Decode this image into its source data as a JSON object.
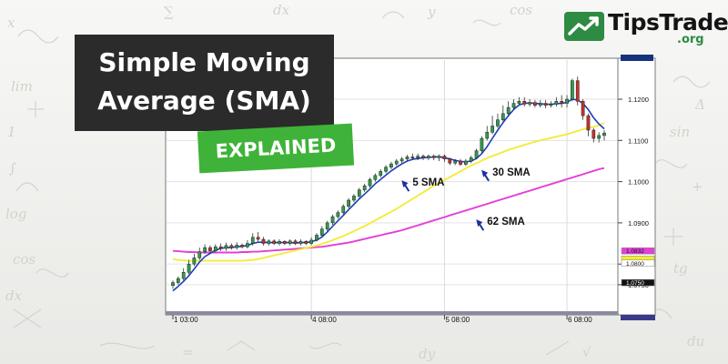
{
  "title": {
    "line1": "Simple Moving",
    "line2": "Average (SMA)",
    "badge": "EXPLAINED"
  },
  "logo": {
    "name": "TipsTrade",
    "suffix": ".org"
  },
  "colors": {
    "sma5": "#1d3fb8",
    "sma30": "#f2ec3a",
    "sma62": "#e23fd8",
    "candle_up": "#2e9e48",
    "candle_down": "#c8302c",
    "title_bg": "#2b2b2b",
    "badge_bg": "#3fb23a"
  },
  "chart_data": {
    "type": "line",
    "title": "",
    "xlabel": "",
    "ylabel": "",
    "x_ticks": [
      "1 03:00",
      "4 08:00",
      "5 08:00",
      "6 08:00"
    ],
    "y_ticks": [
      1.075,
      1.08,
      1.09,
      1.1,
      1.11,
      1.12
    ],
    "y_tick_labels": [
      "1.0750",
      "1.0800",
      "1.0900",
      "1.1000",
      "1.1100",
      "1.1200"
    ],
    "ylim": [
      1.069,
      1.1295
    ],
    "grid": true,
    "price_tags": [
      {
        "value": 1.0832,
        "color": "#e23fd8",
        "label": "1.0832"
      },
      {
        "value": 1.0812,
        "color": "#f2ec3a",
        "label": ""
      },
      {
        "value": 1.0802,
        "color": "#ffffff",
        "label": "1.0800"
      },
      {
        "value": 1.0755,
        "color": "#111111",
        "label": "1.0750"
      }
    ],
    "candles": [
      {
        "o": 1.0748,
        "c": 1.0755,
        "h": 1.076,
        "l": 1.074
      },
      {
        "o": 1.0755,
        "c": 1.0765,
        "h": 1.077,
        "l": 1.075
      },
      {
        "o": 1.0765,
        "c": 1.078,
        "h": 1.079,
        "l": 1.076
      },
      {
        "o": 1.078,
        "c": 1.08,
        "h": 1.081,
        "l": 1.0775
      },
      {
        "o": 1.08,
        "c": 1.0815,
        "h": 1.0825,
        "l": 1.0795
      },
      {
        "o": 1.0815,
        "c": 1.083,
        "h": 1.084,
        "l": 1.081
      },
      {
        "o": 1.083,
        "c": 1.084,
        "h": 1.0848,
        "l": 1.0825
      },
      {
        "o": 1.084,
        "c": 1.0832,
        "h": 1.0845,
        "l": 1.0825
      },
      {
        "o": 1.0832,
        "c": 1.0842,
        "h": 1.0848,
        "l": 1.0828
      },
      {
        "o": 1.0842,
        "c": 1.0838,
        "h": 1.085,
        "l": 1.0832
      },
      {
        "o": 1.0838,
        "c": 1.0845,
        "h": 1.0852,
        "l": 1.0832
      },
      {
        "o": 1.0845,
        "c": 1.084,
        "h": 1.085,
        "l": 1.0835
      },
      {
        "o": 1.084,
        "c": 1.0846,
        "h": 1.0853,
        "l": 1.0835
      },
      {
        "o": 1.0846,
        "c": 1.0842,
        "h": 1.085,
        "l": 1.0838
      },
      {
        "o": 1.0842,
        "c": 1.085,
        "h": 1.0858,
        "l": 1.0838
      },
      {
        "o": 1.085,
        "c": 1.0865,
        "h": 1.0875,
        "l": 1.0845
      },
      {
        "o": 1.0865,
        "c": 1.086,
        "h": 1.0878,
        "l": 1.0855
      },
      {
        "o": 1.086,
        "c": 1.085,
        "h": 1.0866,
        "l": 1.0845
      },
      {
        "o": 1.085,
        "c": 1.0856,
        "h": 1.086,
        "l": 1.0845
      },
      {
        "o": 1.0856,
        "c": 1.085,
        "h": 1.086,
        "l": 1.0846
      },
      {
        "o": 1.085,
        "c": 1.0855,
        "h": 1.086,
        "l": 1.0845
      },
      {
        "o": 1.0855,
        "c": 1.085,
        "h": 1.0858,
        "l": 1.0846
      },
      {
        "o": 1.085,
        "c": 1.0856,
        "h": 1.086,
        "l": 1.0845
      },
      {
        "o": 1.0856,
        "c": 1.085,
        "h": 1.086,
        "l": 1.0846
      },
      {
        "o": 1.085,
        "c": 1.0855,
        "h": 1.086,
        "l": 1.0845
      },
      {
        "o": 1.0855,
        "c": 1.085,
        "h": 1.0858,
        "l": 1.0846
      },
      {
        "o": 1.085,
        "c": 1.0858,
        "h": 1.0865,
        "l": 1.0846
      },
      {
        "o": 1.0858,
        "c": 1.087,
        "h": 1.0875,
        "l": 1.0855
      },
      {
        "o": 1.087,
        "c": 1.0885,
        "h": 1.0892,
        "l": 1.0865
      },
      {
        "o": 1.0885,
        "c": 1.09,
        "h": 1.0905,
        "l": 1.088
      },
      {
        "o": 1.09,
        "c": 1.0915,
        "h": 1.092,
        "l": 1.0895
      },
      {
        "o": 1.0915,
        "c": 1.0925,
        "h": 1.093,
        "l": 1.091
      },
      {
        "o": 1.0925,
        "c": 1.094,
        "h": 1.0945,
        "l": 1.092
      },
      {
        "o": 1.094,
        "c": 1.0955,
        "h": 1.096,
        "l": 1.0935
      },
      {
        "o": 1.0955,
        "c": 1.0965,
        "h": 1.097,
        "l": 1.095
      },
      {
        "o": 1.0965,
        "c": 1.098,
        "h": 1.0985,
        "l": 1.096
      },
      {
        "o": 1.098,
        "c": 1.099,
        "h": 1.0995,
        "l": 1.0975
      },
      {
        "o": 1.099,
        "c": 1.1005,
        "h": 1.101,
        "l": 1.0985
      },
      {
        "o": 1.1005,
        "c": 1.1015,
        "h": 1.102,
        "l": 1.1
      },
      {
        "o": 1.1015,
        "c": 1.1025,
        "h": 1.103,
        "l": 1.101
      },
      {
        "o": 1.1025,
        "c": 1.1035,
        "h": 1.104,
        "l": 1.102
      },
      {
        "o": 1.1035,
        "c": 1.1043,
        "h": 1.1048,
        "l": 1.103
      },
      {
        "o": 1.1043,
        "c": 1.105,
        "h": 1.1055,
        "l": 1.1038
      },
      {
        "o": 1.105,
        "c": 1.1055,
        "h": 1.106,
        "l": 1.1045
      },
      {
        "o": 1.1055,
        "c": 1.106,
        "h": 1.1065,
        "l": 1.105
      },
      {
        "o": 1.106,
        "c": 1.1058,
        "h": 1.1068,
        "l": 1.1052
      },
      {
        "o": 1.1058,
        "c": 1.1062,
        "h": 1.1068,
        "l": 1.1052
      },
      {
        "o": 1.1062,
        "c": 1.1058,
        "h": 1.1066,
        "l": 1.1052
      },
      {
        "o": 1.1058,
        "c": 1.1062,
        "h": 1.1066,
        "l": 1.1052
      },
      {
        "o": 1.1062,
        "c": 1.1058,
        "h": 1.1066,
        "l": 1.1052
      },
      {
        "o": 1.1058,
        "c": 1.1062,
        "h": 1.1066,
        "l": 1.105
      },
      {
        "o": 1.1062,
        "c": 1.1055,
        "h": 1.1066,
        "l": 1.1048
      },
      {
        "o": 1.1055,
        "c": 1.1045,
        "h": 1.1058,
        "l": 1.104
      },
      {
        "o": 1.1045,
        "c": 1.105,
        "h": 1.1055,
        "l": 1.104
      },
      {
        "o": 1.105,
        "c": 1.1042,
        "h": 1.1055,
        "l": 1.1038
      },
      {
        "o": 1.1042,
        "c": 1.105,
        "h": 1.1055,
        "l": 1.1038
      },
      {
        "o": 1.105,
        "c": 1.1058,
        "h": 1.1063,
        "l": 1.1045
      },
      {
        "o": 1.1058,
        "c": 1.1075,
        "h": 1.108,
        "l": 1.1055
      },
      {
        "o": 1.1075,
        "c": 1.1105,
        "h": 1.111,
        "l": 1.107
      },
      {
        "o": 1.1105,
        "c": 1.112,
        "h": 1.1135,
        "l": 1.11
      },
      {
        "o": 1.112,
        "c": 1.1135,
        "h": 1.116,
        "l": 1.1115
      },
      {
        "o": 1.1135,
        "c": 1.115,
        "h": 1.1165,
        "l": 1.113
      },
      {
        "o": 1.115,
        "c": 1.1165,
        "h": 1.1185,
        "l": 1.1145
      },
      {
        "o": 1.1165,
        "c": 1.118,
        "h": 1.1195,
        "l": 1.116
      },
      {
        "o": 1.118,
        "c": 1.119,
        "h": 1.12,
        "l": 1.1175
      },
      {
        "o": 1.119,
        "c": 1.1195,
        "h": 1.1205,
        "l": 1.1185
      },
      {
        "o": 1.1195,
        "c": 1.1188,
        "h": 1.1205,
        "l": 1.1182
      },
      {
        "o": 1.1188,
        "c": 1.1192,
        "h": 1.12,
        "l": 1.1182
      },
      {
        "o": 1.1192,
        "c": 1.1185,
        "h": 1.1198,
        "l": 1.118
      },
      {
        "o": 1.1185,
        "c": 1.119,
        "h": 1.1198,
        "l": 1.118
      },
      {
        "o": 1.119,
        "c": 1.1185,
        "h": 1.1198,
        "l": 1.1178
      },
      {
        "o": 1.1185,
        "c": 1.1188,
        "h": 1.1195,
        "l": 1.118
      },
      {
        "o": 1.1188,
        "c": 1.1195,
        "h": 1.1205,
        "l": 1.1182
      },
      {
        "o": 1.1195,
        "c": 1.119,
        "h": 1.121,
        "l": 1.118
      },
      {
        "o": 1.119,
        "c": 1.12,
        "h": 1.121,
        "l": 1.118
      },
      {
        "o": 1.12,
        "c": 1.1245,
        "h": 1.125,
        "l": 1.1195
      },
      {
        "o": 1.1245,
        "c": 1.1195,
        "h": 1.1255,
        "l": 1.1185
      },
      {
        "o": 1.1195,
        "c": 1.116,
        "h": 1.12,
        "l": 1.115
      },
      {
        "o": 1.116,
        "c": 1.1125,
        "h": 1.1165,
        "l": 1.111
      },
      {
        "o": 1.1125,
        "c": 1.1105,
        "h": 1.113,
        "l": 1.1095
      },
      {
        "o": 1.1105,
        "c": 1.1112,
        "h": 1.112,
        "l": 1.1095
      },
      {
        "o": 1.1112,
        "c": 1.1118,
        "h": 1.1125,
        "l": 1.11
      }
    ],
    "series": [
      {
        "name": "5 SMA",
        "color": "#1d3fb8",
        "values": [
          1.0735,
          1.0746,
          1.0758,
          1.0772,
          1.0788,
          1.0805,
          1.0818,
          1.0826,
          1.0834,
          1.0838,
          1.084,
          1.084,
          1.0842,
          1.0843,
          1.0845,
          1.085,
          1.0853,
          1.0853,
          1.0852,
          1.0852,
          1.0852,
          1.0852,
          1.0852,
          1.0851,
          1.0852,
          1.0852,
          1.0854,
          1.0858,
          1.0866,
          1.0878,
          1.0892,
          1.0905,
          1.0918,
          1.0932,
          1.0945,
          1.0958,
          1.097,
          1.0982,
          1.0995,
          1.1005,
          1.1016,
          1.1026,
          1.1035,
          1.1043,
          1.105,
          1.1054,
          1.1056,
          1.1058,
          1.1059,
          1.106,
          1.106,
          1.1058,
          1.1055,
          1.1052,
          1.1049,
          1.1048,
          1.105,
          1.1056,
          1.1068,
          1.1085,
          1.1105,
          1.1125,
          1.1143,
          1.116,
          1.1175,
          1.1186,
          1.119,
          1.1191,
          1.119,
          1.1189,
          1.1188,
          1.1188,
          1.1189,
          1.119,
          1.1192,
          1.12,
          1.1198,
          1.119,
          1.1175,
          1.1155,
          1.114,
          1.1128
        ]
      },
      {
        "name": "30 SMA",
        "color": "#f2ec3a",
        "values": [
          1.0812,
          1.081,
          1.0809,
          1.0808,
          1.0808,
          1.0808,
          1.0808,
          1.0808,
          1.0808,
          1.0808,
          1.0808,
          1.0808,
          1.0808,
          1.0808,
          1.0809,
          1.081,
          1.0812,
          1.0815,
          1.0818,
          1.0821,
          1.0824,
          1.0827,
          1.083,
          1.0833,
          1.0836,
          1.0839,
          1.0842,
          1.0845,
          1.0849,
          1.0853,
          1.0858,
          1.0863,
          1.0868,
          1.0874,
          1.088,
          1.0886,
          1.0892,
          1.0899,
          1.0906,
          1.0913,
          1.092,
          1.0927,
          1.0934,
          1.0942,
          1.095,
          1.0958,
          1.0966,
          1.0974,
          1.0982,
          1.099,
          1.0997,
          1.1004,
          1.1011,
          1.1018,
          1.1025,
          1.1032,
          1.1039,
          1.1045,
          1.1051,
          1.1057,
          1.1062,
          1.1067,
          1.1072,
          1.1077,
          1.1081,
          1.1085,
          1.1089,
          1.1093,
          1.1097,
          1.11,
          1.1103,
          1.1106,
          1.1109,
          1.1112,
          1.1115,
          1.1119,
          1.1123,
          1.1127,
          1.113,
          1.1133,
          1.1137,
          1.1142
        ]
      },
      {
        "name": "62 SMA",
        "color": "#e23fd8",
        "values": [
          1.0832,
          1.0831,
          1.083,
          1.0829,
          1.0829,
          1.0828,
          1.0828,
          1.0828,
          1.0828,
          1.0828,
          1.0828,
          1.0828,
          1.0828,
          1.0829,
          1.0829,
          1.083,
          1.083,
          1.0831,
          1.0832,
          1.0833,
          1.0834,
          1.0835,
          1.0836,
          1.0837,
          1.0838,
          1.0839,
          1.084,
          1.0841,
          1.0842,
          1.0844,
          1.0846,
          1.0848,
          1.085,
          1.0852,
          1.0855,
          1.0858,
          1.0861,
          1.0864,
          1.0867,
          1.087,
          1.0873,
          1.0876,
          1.0879,
          1.0882,
          1.0886,
          1.089,
          1.0894,
          1.0898,
          1.0902,
          1.0906,
          1.091,
          1.0914,
          1.0918,
          1.0922,
          1.0926,
          1.093,
          1.0934,
          1.0938,
          1.0942,
          1.0946,
          1.095,
          1.0954,
          1.0958,
          1.0962,
          1.0966,
          1.097,
          1.0974,
          1.0978,
          1.0982,
          1.0986,
          1.099,
          1.0994,
          1.0998,
          1.1002,
          1.1006,
          1.101,
          1.1014,
          1.1018,
          1.1022,
          1.1026,
          1.103,
          1.1033
        ]
      }
    ],
    "annotations": [
      {
        "text": "5 SMA",
        "x": 45,
        "y": 1.099,
        "arrow_to_index": 42
      },
      {
        "text": "30 SMA",
        "x": 60,
        "y": 1.1015,
        "arrow_to_index": 60
      },
      {
        "text": "62 SMA",
        "x": 59,
        "y": 1.0895,
        "arrow_to_index": 57
      }
    ]
  }
}
